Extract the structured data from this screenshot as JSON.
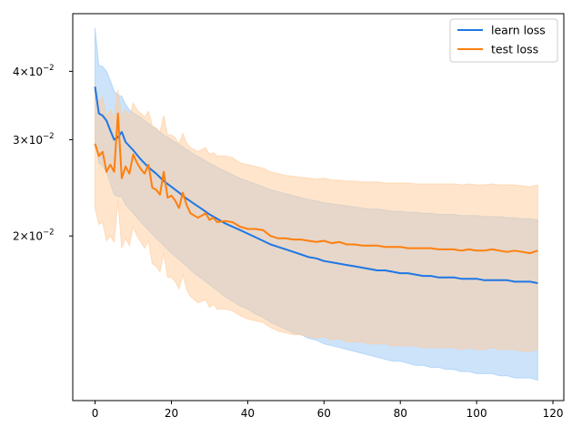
{
  "chart_data": {
    "type": "line",
    "title": "",
    "xlabel": "",
    "ylabel": "",
    "yscale": "log",
    "xlim": [
      -5.85,
      122.85
    ],
    "ylim": [
      0.01,
      0.051
    ],
    "xticks": [
      0,
      20,
      40,
      60,
      80,
      100,
      120
    ],
    "xtick_labels": [
      "0",
      "20",
      "40",
      "60",
      "80",
      "100",
      "120"
    ],
    "yticks": [
      0.02,
      0.03,
      0.04
    ],
    "ytick_labels": [
      {
        "mant": "2",
        "exp": "−2"
      },
      {
        "mant": "3",
        "exp": "−2"
      },
      {
        "mant": "4",
        "exp": "−2"
      }
    ],
    "legend_position": "top-right",
    "series": [
      {
        "name": "learn loss",
        "color": "#1f77e4",
        "band_color": "#9ac8f6",
        "x": [
          0,
          1,
          2,
          3,
          4,
          5,
          6,
          7,
          8,
          9,
          10,
          12,
          14,
          16,
          18,
          20,
          22,
          24,
          26,
          28,
          30,
          32,
          34,
          36,
          38,
          40,
          42,
          44,
          46,
          48,
          50,
          52,
          54,
          56,
          58,
          60,
          62,
          64,
          66,
          68,
          70,
          72,
          74,
          76,
          78,
          80,
          82,
          84,
          86,
          88,
          90,
          92,
          94,
          96,
          98,
          100,
          102,
          104,
          106,
          108,
          110,
          112,
          114,
          116
        ],
        "mean": [
          0.0375,
          0.0335,
          0.0332,
          0.0325,
          0.0312,
          0.03,
          0.0303,
          0.031,
          0.0297,
          0.0292,
          0.0287,
          0.0276,
          0.0267,
          0.026,
          0.0252,
          0.0246,
          0.024,
          0.0234,
          0.0229,
          0.0224,
          0.0219,
          0.0215,
          0.0211,
          0.0208,
          0.0205,
          0.0202,
          0.0199,
          0.0196,
          0.0193,
          0.0191,
          0.0189,
          0.0187,
          0.0185,
          0.0183,
          0.0182,
          0.018,
          0.0179,
          0.0178,
          0.0177,
          0.0176,
          0.0175,
          0.0174,
          0.0173,
          0.0173,
          0.0172,
          0.0171,
          0.0171,
          0.017,
          0.0169,
          0.0169,
          0.0168,
          0.0168,
          0.0168,
          0.0167,
          0.0167,
          0.0167,
          0.0166,
          0.0166,
          0.0166,
          0.0166,
          0.0165,
          0.0165,
          0.0165,
          0.0164
        ],
        "upper": [
          0.048,
          0.041,
          0.0408,
          0.04,
          0.0385,
          0.0368,
          0.0362,
          0.036,
          0.0348,
          0.034,
          0.0336,
          0.0329,
          0.0321,
          0.0314,
          0.0306,
          0.03,
          0.0294,
          0.0288,
          0.0282,
          0.0277,
          0.0272,
          0.0267,
          0.0263,
          0.0259,
          0.0255,
          0.0252,
          0.0249,
          0.0246,
          0.0243,
          0.0241,
          0.0239,
          0.0237,
          0.0235,
          0.0233,
          0.0232,
          0.023,
          0.0229,
          0.0228,
          0.0227,
          0.0226,
          0.0225,
          0.0224,
          0.0224,
          0.0223,
          0.0222,
          0.0222,
          0.0221,
          0.0221,
          0.022,
          0.022,
          0.0219,
          0.0219,
          0.0219,
          0.0218,
          0.0218,
          0.0218,
          0.0217,
          0.0217,
          0.0217,
          0.0216,
          0.0216,
          0.0215,
          0.0215,
          0.0214
        ],
        "lower": [
          0.03,
          0.0272,
          0.0268,
          0.0262,
          0.025,
          0.0238,
          0.0236,
          0.0236,
          0.0228,
          0.0224,
          0.022,
          0.0212,
          0.0205,
          0.0198,
          0.0192,
          0.0186,
          0.0181,
          0.0176,
          0.0171,
          0.0167,
          0.0163,
          0.0159,
          0.0155,
          0.0152,
          0.0149,
          0.0147,
          0.0144,
          0.0142,
          0.0139,
          0.0137,
          0.0135,
          0.0133,
          0.0132,
          0.013,
          0.0129,
          0.0127,
          0.0126,
          0.0125,
          0.0124,
          0.0123,
          0.0122,
          0.0121,
          0.012,
          0.0119,
          0.0118,
          0.0118,
          0.0117,
          0.0116,
          0.0116,
          0.0115,
          0.0115,
          0.0114,
          0.0114,
          0.0113,
          0.0113,
          0.0112,
          0.0112,
          0.0112,
          0.0111,
          0.0111,
          0.011,
          0.011,
          0.011,
          0.0109
        ]
      },
      {
        "name": "test loss",
        "color": "#ff7f0e",
        "band_color": "#ffcc99",
        "x": [
          0,
          1,
          2,
          3,
          4,
          5,
          6,
          7,
          8,
          9,
          10,
          11,
          12,
          13,
          14,
          15,
          16,
          17,
          18,
          19,
          20,
          21,
          22,
          23,
          24,
          25,
          26,
          27,
          28,
          29,
          30,
          31,
          32,
          34,
          36,
          38,
          40,
          42,
          44,
          46,
          48,
          50,
          52,
          54,
          56,
          58,
          60,
          62,
          64,
          66,
          68,
          70,
          72,
          74,
          76,
          78,
          80,
          82,
          84,
          86,
          88,
          90,
          92,
          94,
          96,
          98,
          100,
          102,
          104,
          106,
          108,
          110,
          112,
          114,
          116
        ],
        "mean": [
          0.0295,
          0.028,
          0.0285,
          0.0262,
          0.027,
          0.0262,
          0.0335,
          0.0255,
          0.0268,
          0.026,
          0.0282,
          0.0272,
          0.0265,
          0.026,
          0.027,
          0.0245,
          0.0243,
          0.0238,
          0.0262,
          0.0235,
          0.0237,
          0.0232,
          0.0225,
          0.024,
          0.0228,
          0.022,
          0.0218,
          0.0216,
          0.0218,
          0.022,
          0.0214,
          0.0216,
          0.0212,
          0.0213,
          0.0212,
          0.0208,
          0.0206,
          0.0206,
          0.0205,
          0.02,
          0.0198,
          0.0198,
          0.0197,
          0.0197,
          0.0196,
          0.0195,
          0.0196,
          0.0194,
          0.0195,
          0.0193,
          0.0193,
          0.0192,
          0.0192,
          0.0192,
          0.0191,
          0.0191,
          0.0191,
          0.019,
          0.019,
          0.019,
          0.019,
          0.0189,
          0.0189,
          0.0189,
          0.0188,
          0.0189,
          0.0188,
          0.0188,
          0.0189,
          0.0188,
          0.0187,
          0.0188,
          0.0187,
          0.0186,
          0.0188
        ],
        "upper": [
          0.038,
          0.035,
          0.036,
          0.033,
          0.034,
          0.0328,
          0.037,
          0.033,
          0.034,
          0.033,
          0.035,
          0.034,
          0.0335,
          0.033,
          0.0338,
          0.0318,
          0.0315,
          0.031,
          0.0332,
          0.0306,
          0.0306,
          0.0302,
          0.0295,
          0.0308,
          0.0296,
          0.029,
          0.0288,
          0.0285,
          0.0288,
          0.029,
          0.0282,
          0.0284,
          0.028,
          0.028,
          0.0278,
          0.0272,
          0.027,
          0.0268,
          0.0266,
          0.0262,
          0.026,
          0.0258,
          0.0257,
          0.0256,
          0.0255,
          0.0254,
          0.0255,
          0.0253,
          0.0253,
          0.0252,
          0.0252,
          0.0251,
          0.0251,
          0.0251,
          0.025,
          0.025,
          0.025,
          0.025,
          0.0249,
          0.0249,
          0.0249,
          0.0249,
          0.0249,
          0.0249,
          0.0248,
          0.0249,
          0.0248,
          0.0248,
          0.0249,
          0.0248,
          0.0248,
          0.0248,
          0.0247,
          0.0246,
          0.0248
        ],
        "lower": [
          0.0225,
          0.021,
          0.0212,
          0.0196,
          0.02,
          0.0195,
          0.0232,
          0.019,
          0.0198,
          0.0192,
          0.0208,
          0.02,
          0.0195,
          0.019,
          0.0196,
          0.0178,
          0.0176,
          0.0172,
          0.0186,
          0.0168,
          0.0168,
          0.0165,
          0.016,
          0.017,
          0.016,
          0.0155,
          0.0153,
          0.0151,
          0.0152,
          0.0153,
          0.0148,
          0.015,
          0.0147,
          0.0147,
          0.0146,
          0.0143,
          0.0141,
          0.014,
          0.0139,
          0.0136,
          0.0134,
          0.0133,
          0.0132,
          0.0132,
          0.0131,
          0.013,
          0.0131,
          0.0129,
          0.013,
          0.0128,
          0.0128,
          0.0128,
          0.0127,
          0.0127,
          0.0127,
          0.0126,
          0.0126,
          0.0126,
          0.0126,
          0.0125,
          0.0125,
          0.0125,
          0.0125,
          0.0125,
          0.0124,
          0.0125,
          0.0124,
          0.0124,
          0.0125,
          0.0124,
          0.0124,
          0.0124,
          0.0123,
          0.0123,
          0.0124
        ]
      }
    ]
  }
}
